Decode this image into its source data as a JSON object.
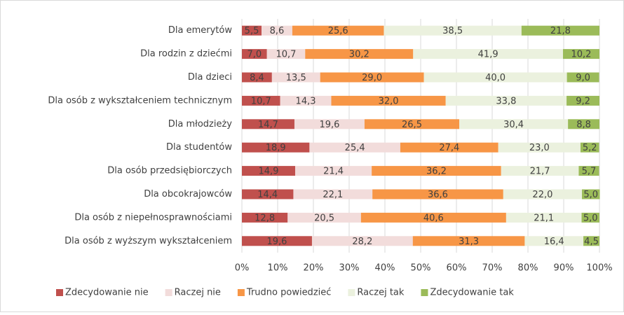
{
  "chart_data": {
    "type": "stacked_barh",
    "categories": [
      "Dla emerytów",
      "Dla rodzin z dziećmi",
      "Dla dzieci",
      "Dla osób z wykształceniem technicznym",
      "Dla młodzieży",
      "Dla studentów",
      "Dla osób przedsiębiorczych",
      "Dla obcokrajowców",
      "Dla osób z niepełnosprawnościami",
      "Dla osób z wyższym wykształceniem"
    ],
    "series": [
      {
        "name": "Zdecydowanie nie",
        "color": "#c0504d",
        "values": [
          5.5,
          7.0,
          8.4,
          10.7,
          14.7,
          18.9,
          14.9,
          14.4,
          12.8,
          19.6
        ],
        "value_labels": [
          "5,5",
          "7,0",
          "8,4",
          "10,7",
          "14,7",
          "18,9",
          "14,9",
          "14,4",
          "12,8",
          "19,6"
        ]
      },
      {
        "name": "Raczej nie",
        "color": "#f2dcdb",
        "values": [
          8.6,
          10.7,
          13.5,
          14.3,
          19.6,
          25.4,
          21.4,
          22.1,
          20.5,
          28.2
        ],
        "value_labels": [
          "8,6",
          "10,7",
          "13,5",
          "14,3",
          "19,6",
          "25,4",
          "21,4",
          "22,1",
          "20,5",
          "28,2"
        ]
      },
      {
        "name": "Trudno powiedzieć",
        "color": "#f79646",
        "values": [
          25.6,
          30.2,
          29.0,
          32.0,
          26.5,
          27.4,
          36.2,
          36.6,
          40.6,
          31.3
        ],
        "value_labels": [
          "25,6",
          "30,2",
          "29,0",
          "32,0",
          "26,5",
          "27,4",
          "36,2",
          "36,6",
          "40,6",
          "31,3"
        ]
      },
      {
        "name": "Raczej tak",
        "color": "#ebf1de",
        "values": [
          38.5,
          41.9,
          40.0,
          33.8,
          30.4,
          23.0,
          21.7,
          22.0,
          21.1,
          16.4
        ],
        "value_labels": [
          "38,5",
          "41,9",
          "40,0",
          "33,8",
          "30,4",
          "23,0",
          "21,7",
          "22,0",
          "21,1",
          "16,4"
        ]
      },
      {
        "name": "Zdecydowanie tak",
        "color": "#9bbb59",
        "values": [
          21.8,
          10.2,
          9.0,
          9.2,
          8.8,
          5.2,
          5.7,
          5.0,
          5.0,
          4.5
        ],
        "value_labels": [
          "21,8",
          "10,2",
          "9,0",
          "9,2",
          "8,8",
          "5,2",
          "5,7",
          "5,0",
          "5,0",
          "4,5"
        ]
      }
    ],
    "xlim": [
      0,
      100
    ],
    "xticks": [
      {
        "value": 0,
        "label": "0%"
      },
      {
        "value": 10,
        "label": "10%"
      },
      {
        "value": 20,
        "label": "20%"
      },
      {
        "value": 30,
        "label": "30%"
      },
      {
        "value": 40,
        "label": "40%"
      },
      {
        "value": 50,
        "label": "50%"
      },
      {
        "value": 60,
        "label": "60%"
      },
      {
        "value": 70,
        "label": "70%"
      },
      {
        "value": 80,
        "label": "80%"
      },
      {
        "value": 90,
        "label": "90%"
      },
      {
        "value": 100,
        "label": "100%"
      }
    ],
    "grid": true,
    "legend": "bottom"
  }
}
